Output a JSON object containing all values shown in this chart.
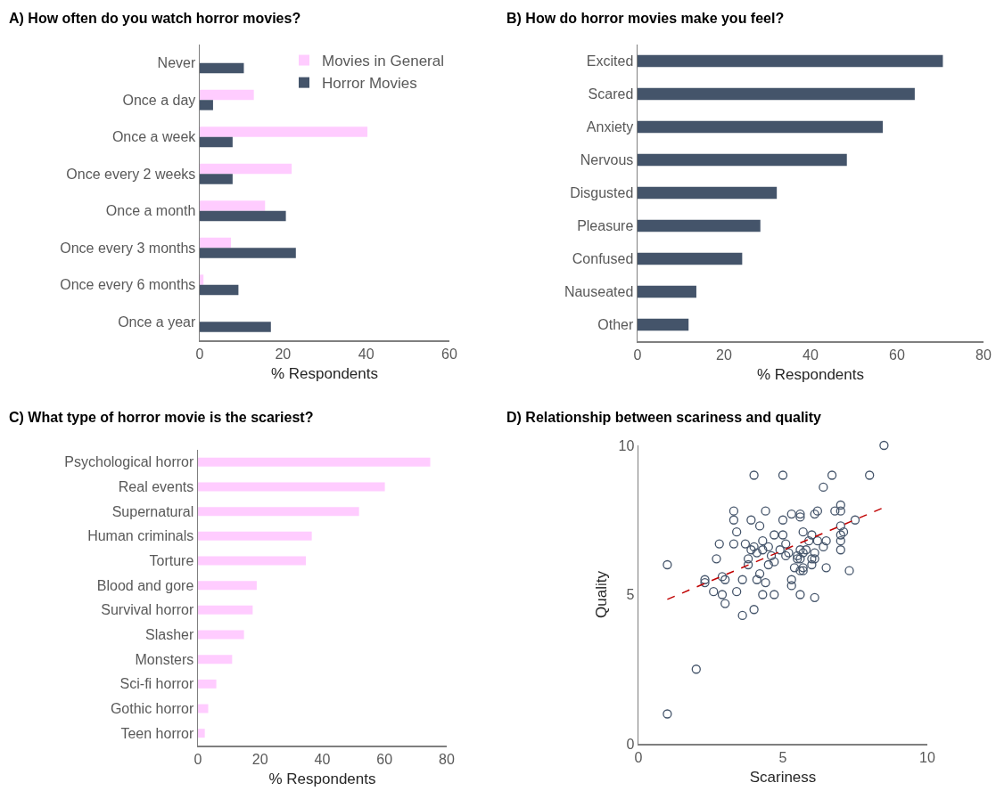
{
  "chart_data": [
    {
      "type": "bar",
      "orientation": "horizontal",
      "title": "A) How often do you watch horror movies?",
      "xlabel": "% Respondents",
      "categories": [
        "Never",
        "Once a day",
        "Once a week",
        "Once every 2 weeks",
        "Once a month",
        "Once every 3 months",
        "Once every 6 months",
        "Once a year"
      ],
      "series": [
        {
          "name": "Movies in General",
          "color": "#ffccff",
          "values": [
            0,
            13.0,
            40.3,
            22.1,
            15.7,
            7.5,
            0.9,
            null
          ]
        },
        {
          "name": "Horror Movies",
          "color": "#44546a",
          "values": [
            10.6,
            3.2,
            7.9,
            7.9,
            20.7,
            23.1,
            9.3,
            17.1
          ]
        }
      ],
      "xlim": [
        0,
        60
      ],
      "xticks": [
        0,
        20,
        40,
        60
      ],
      "grid": false,
      "legend": "top right"
    },
    {
      "type": "bar",
      "orientation": "horizontal",
      "title": "B) How do horror movies make you feel?",
      "xlabel": "% Respondents",
      "categories": [
        "Excited",
        "Scared",
        "Anxiety",
        "Nervous",
        "Disgusted",
        "Pleasure",
        "Confused",
        "Nauseated",
        "Other"
      ],
      "series": [
        {
          "color": "#44546a",
          "values": [
            70.6,
            64.1,
            56.7,
            48.4,
            32.2,
            28.4,
            24.2,
            13.6,
            11.8
          ]
        }
      ],
      "xlim": [
        0,
        80
      ],
      "xticks": [
        0,
        20,
        40,
        60,
        80
      ],
      "grid": false
    },
    {
      "type": "bar",
      "orientation": "horizontal",
      "title": "C) What type of horror movie is the scariest?",
      "xlabel": "% Respondents",
      "categories": [
        "Psychological horror",
        "Real events",
        "Supernatural",
        "Human criminals",
        "Torture",
        "Blood and gore",
        "Survival horror",
        "Slasher",
        "Monsters",
        "Sci-fi horror",
        "Gothic horror",
        "Teen horror"
      ],
      "series": [
        {
          "color": "#ffccff",
          "values": [
            74.7,
            60.1,
            51.8,
            36.6,
            34.7,
            18.9,
            17.6,
            14.8,
            11.0,
            5.9,
            3.3,
            2.2
          ]
        }
      ],
      "xlim": [
        0,
        80
      ],
      "xticks": [
        0,
        20,
        40,
        60,
        80
      ],
      "grid": false
    },
    {
      "type": "scatter",
      "title": "D) Relationship between scariness and quality",
      "xlabel": "Scariness",
      "ylabel": "Quality",
      "series": [
        {
          "type": "scatter",
          "color": "#44546a",
          "marker": "circle",
          "x": [
            1.0,
            1.0,
            2.0,
            8.5,
            4.0,
            5.0,
            6.7,
            8.0,
            6.4,
            3.3,
            3.3,
            4.4,
            3.9,
            4.2,
            5.0,
            5.3,
            5.6,
            5.6,
            6.1,
            6.2,
            6.8,
            7.0,
            7.0,
            7.5,
            7.0,
            3.4,
            4.7,
            5.0,
            5.7,
            6.0,
            7.1,
            7.0,
            2.8,
            3.3,
            3.7,
            4.3,
            5.1,
            5.9,
            6.2,
            6.5,
            7.0,
            3.9,
            4.0,
            4.3,
            4.5,
            4.9,
            5.6,
            5.8,
            6.4,
            7.0,
            4.1,
            4.6,
            5.1,
            5.2,
            5.5,
            5.7,
            6.1,
            2.7,
            3.8,
            5.5,
            5.6,
            6.0,
            6.1,
            3.8,
            4.5,
            4.7,
            5.4,
            5.7,
            6.0,
            6.5,
            5.6,
            5.7,
            7.3,
            4.2,
            2.3,
            2.3,
            2.9,
            3.0,
            3.6,
            4.1,
            4.4,
            5.3,
            5.3,
            2.6,
            2.9,
            3.4,
            4.3,
            4.7,
            5.6,
            6.1,
            3.0,
            4.0,
            3.6
          ],
          "values": [
            6.0,
            1.0,
            2.5,
            10.0,
            9.0,
            9.0,
            9.0,
            9.0,
            8.6,
            7.8,
            7.5,
            7.8,
            7.5,
            7.3,
            7.5,
            7.7,
            7.7,
            7.6,
            7.7,
            7.8,
            7.8,
            8.0,
            7.8,
            7.5,
            7.3,
            7.1,
            7.0,
            7.0,
            7.1,
            7.0,
            7.1,
            7.0,
            6.7,
            6.7,
            6.7,
            6.8,
            6.7,
            6.8,
            6.8,
            6.8,
            6.8,
            6.5,
            6.6,
            6.5,
            6.6,
            6.5,
            6.5,
            6.5,
            6.6,
            6.5,
            6.4,
            6.3,
            6.3,
            6.4,
            6.3,
            6.4,
            6.4,
            6.2,
            6.2,
            6.2,
            6.2,
            6.2,
            6.2,
            6.0,
            6.0,
            6.1,
            5.9,
            5.9,
            6.0,
            5.9,
            5.8,
            5.8,
            5.8,
            5.7,
            5.5,
            5.4,
            5.6,
            5.5,
            5.5,
            5.5,
            5.4,
            5.5,
            5.3,
            5.1,
            5.0,
            5.1,
            5.0,
            5.0,
            5.0,
            4.9,
            4.7,
            4.5,
            4.3
          ]
        },
        {
          "type": "line",
          "color": "#c00000",
          "marker": "none",
          "line_style": "dashed",
          "x": [
            1.0,
            8.5
          ],
          "values": [
            4.84,
            7.92
          ]
        }
      ],
      "xlim": [
        0,
        10
      ],
      "xticks": [
        0,
        5,
        10
      ],
      "ylim": [
        0,
        10
      ],
      "yticks": [
        0,
        5,
        10
      ],
      "grid": false
    }
  ]
}
